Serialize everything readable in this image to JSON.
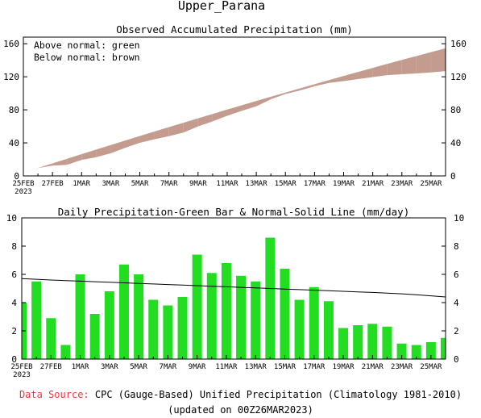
{
  "page": {
    "title": "Upper_Parana",
    "source_label": "Data Source:",
    "source_text": "CPC (Gauge-Based) Unified Precipitation (Climatology 1981-2010)",
    "updated": "(updated on 00Z26MAR2023)"
  },
  "colors": {
    "band": "#c49b8f",
    "bar": "#22dd22",
    "axis": "#000000",
    "source_label": "#e23b3b"
  },
  "chart_data": [
    {
      "type": "area",
      "title": "Observed Accumulated Precipitation (mm)",
      "legend": [
        "Above normal: green",
        "Below normal: brown"
      ],
      "legend_placement": "top-left",
      "grid": false,
      "x": [
        "25FEB",
        "26FEB",
        "27FEB",
        "28FEB",
        "1MAR",
        "2MAR",
        "3MAR",
        "4MAR",
        "5MAR",
        "6MAR",
        "7MAR",
        "8MAR",
        "9MAR",
        "10MAR",
        "11MAR",
        "12MAR",
        "13MAR",
        "14MAR",
        "15MAR",
        "16MAR",
        "17MAR",
        "18MAR",
        "19MAR",
        "20MAR",
        "21MAR",
        "22MAR",
        "23MAR",
        "24MAR",
        "25MAR",
        "26MAR"
      ],
      "x_tick_labels": [
        "25FEB\n2023",
        "27FEB",
        "1MAR",
        "3MAR",
        "5MAR",
        "7MAR",
        "9MAR",
        "11MAR",
        "13MAR",
        "15MAR",
        "17MAR",
        "19MAR",
        "21MAR",
        "23MAR",
        "25MAR"
      ],
      "x_tick_positions": [
        0,
        2,
        4,
        6,
        8,
        10,
        12,
        14,
        16,
        18,
        20,
        22,
        24,
        26,
        28
      ],
      "y_ticks": [
        0,
        40,
        80,
        120,
        160
      ],
      "ylim": [
        0,
        168
      ],
      "series": [
        {
          "name": "Normal",
          "values": [
            4.0,
            9.7,
            15.2,
            20.8,
            26.4,
            31.9,
            37.4,
            42.9,
            48.3,
            53.7,
            59.1,
            64.4,
            69.7,
            75.0,
            80.3,
            85.5,
            90.7,
            95.8,
            100.9,
            106.0,
            111.0,
            116.0,
            121.0,
            125.9,
            130.8,
            135.6,
            140.4,
            145.1,
            149.8,
            154.4
          ]
        },
        {
          "name": "Observed",
          "values": [
            4.0,
            9.5,
            12.4,
            13.4,
            19.4,
            22.6,
            27.4,
            34.1,
            40.1,
            44.3,
            48.1,
            52.5,
            59.9,
            66.0,
            72.8,
            78.7,
            84.2,
            92.8,
            99.2,
            103.4,
            108.5,
            112.6,
            114.8,
            117.2,
            119.7,
            122.0,
            123.1,
            124.1,
            125.3,
            126.8
          ]
        }
      ]
    },
    {
      "type": "bar",
      "title": "Daily Precipitation-Green Bar & Normal-Solid Line (mm/day)",
      "grid": false,
      "y_ticks": [
        0,
        2,
        4,
        6,
        8,
        10
      ],
      "ylim": [
        0,
        10
      ],
      "categories": [
        "25FEB",
        "26FEB",
        "27FEB",
        "28FEB",
        "1MAR",
        "2MAR",
        "3MAR",
        "4MAR",
        "5MAR",
        "6MAR",
        "7MAR",
        "8MAR",
        "9MAR",
        "10MAR",
        "11MAR",
        "12MAR",
        "13MAR",
        "14MAR",
        "15MAR",
        "16MAR",
        "17MAR",
        "18MAR",
        "19MAR",
        "20MAR",
        "21MAR",
        "22MAR",
        "23MAR",
        "24MAR",
        "25MAR",
        "26MAR"
      ],
      "series": [
        {
          "name": "Daily Precipitation",
          "values": [
            4.0,
            5.5,
            2.9,
            1.0,
            6.0,
            3.2,
            4.8,
            6.7,
            6.0,
            4.2,
            3.8,
            4.4,
            7.4,
            6.1,
            6.8,
            5.9,
            5.5,
            8.6,
            6.4,
            4.2,
            5.1,
            4.1,
            2.2,
            2.4,
            2.5,
            2.3,
            1.1,
            1.0,
            1.2,
            1.5
          ]
        },
        {
          "name": "Normal",
          "values": [
            5.7,
            5.65,
            5.6,
            5.56,
            5.52,
            5.48,
            5.44,
            5.4,
            5.36,
            5.32,
            5.28,
            5.24,
            5.2,
            5.16,
            5.12,
            5.08,
            5.04,
            5.0,
            4.96,
            4.92,
            4.88,
            4.84,
            4.8,
            4.76,
            4.72,
            4.67,
            4.62,
            4.56,
            4.48,
            4.4
          ]
        }
      ]
    }
  ]
}
